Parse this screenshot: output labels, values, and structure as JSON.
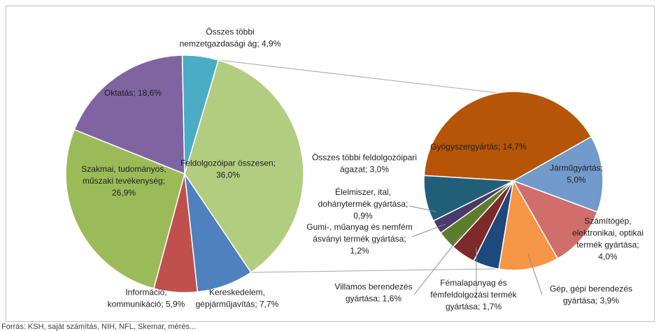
{
  "chart_data": {
    "type": "pie",
    "title": "",
    "main_pie": {
      "slices": [
        {
          "label_lines": [
            "Feldolgozóipar összesen;",
            "36,0%"
          ],
          "value": 36.0,
          "color": "#b3cd80"
        },
        {
          "label_lines": [
            "Kereskedelem,",
            "gépjárműjavítás; 7,7%"
          ],
          "value": 7.7,
          "color": "#4e81bd"
        },
        {
          "label_lines": [
            "Információ,",
            "kommunikáció; 5,9%"
          ],
          "value": 5.9,
          "color": "#c0504e"
        },
        {
          "label_lines": [
            "Szakmai, tudományos,",
            "műszaki tevékenység;",
            "26,9%"
          ],
          "value": 26.9,
          "color": "#9bbb59"
        },
        {
          "label_lines": [
            "Oktatás; 18,6%"
          ],
          "value": 18.6,
          "color": "#8064a2"
        },
        {
          "label_lines": [
            "Összes többi",
            "nemzetgazdasági ág; 4,9%"
          ],
          "value": 4.9,
          "color": "#4bacc6"
        }
      ]
    },
    "secondary_pie": {
      "slices": [
        {
          "label_lines": [
            "Gyógyszergyártás; 14,7%"
          ],
          "value": 14.7,
          "color": "#b65508"
        },
        {
          "label_lines": [
            "Járműgyártás;",
            "5,0%"
          ],
          "value": 5.0,
          "color": "#729acb"
        },
        {
          "label_lines": [
            "Számítógép,",
            "elektronikai, optikai",
            "termék gyártása;",
            "4,0%"
          ],
          "value": 4.0,
          "color": "#d06e6c"
        },
        {
          "label_lines": [
            "Gép, gépi berendezés",
            "gyártása; 3,9%"
          ],
          "value": 3.9,
          "color": "#f79646"
        },
        {
          "label_lines": [
            "Fémalapanyag és",
            "fémfeldolgozási termék",
            "gyártása; 1,7%"
          ],
          "value": 1.7,
          "color": "#1f497d"
        },
        {
          "label_lines": [
            "Villamos berendezés",
            "gyártása; 1,6%"
          ],
          "value": 1.6,
          "color": "#7e2a2a"
        },
        {
          "label_lines": [
            "Gumi-, műanyag és nemfém",
            "ásványi termék gyártása;",
            "1,2%"
          ],
          "value": 1.2,
          "color": "#5e7c2d"
        },
        {
          "label_lines": [
            "Élelmiszer, ital,",
            "dohánytermék gyártása;",
            "0,9%"
          ],
          "value": 0.9,
          "color": "#4a3a6a"
        },
        {
          "label_lines": [
            "Összes többi feldolgozóipari",
            "ágazat; 3,0%"
          ],
          "value": 3.0,
          "color": "#215f78"
        }
      ]
    }
  },
  "source_note": "Forrás: KSH, saját számítás, NIH, NFL, Skemar, mérés..."
}
